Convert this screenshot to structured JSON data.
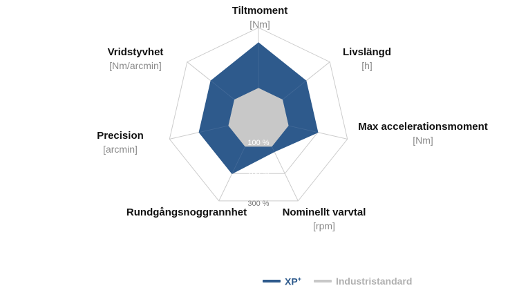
{
  "chart_data": {
    "type": "radar",
    "axes": [
      {
        "name": "Tiltmoment",
        "unit": "[Nm]"
      },
      {
        "name": "Livslängd",
        "unit": "[h]"
      },
      {
        "name": "Max accelerationsmoment",
        "unit": "[Nm]"
      },
      {
        "name": "Nominellt varvtal",
        "unit": "[rpm]"
      },
      {
        "name": "Rundgångsnoggrannhet",
        "unit": ""
      },
      {
        "name": "Precision",
        "unit": "[arcmin]"
      },
      {
        "name": "Vridstyvhet",
        "unit": "[Nm/arcmin]"
      }
    ],
    "ring_labels": [
      "100 %",
      "200 %",
      "300 %"
    ],
    "rings": [
      100,
      200,
      300
    ],
    "rmax": 300,
    "series": [
      {
        "name": "XP+",
        "color": "#2e5a8c",
        "values": [
          250,
          200,
          200,
          120,
          200,
          200,
          200
        ]
      },
      {
        "name": "Industristandard",
        "color": "#c8c8c8",
        "values": [
          100,
          100,
          100,
          100,
          100,
          100,
          100
        ]
      }
    ],
    "grid_color": "#cccccc"
  },
  "legend": {
    "xp_main": "XP",
    "xp_sup": "+",
    "industry": "Industristandard"
  }
}
